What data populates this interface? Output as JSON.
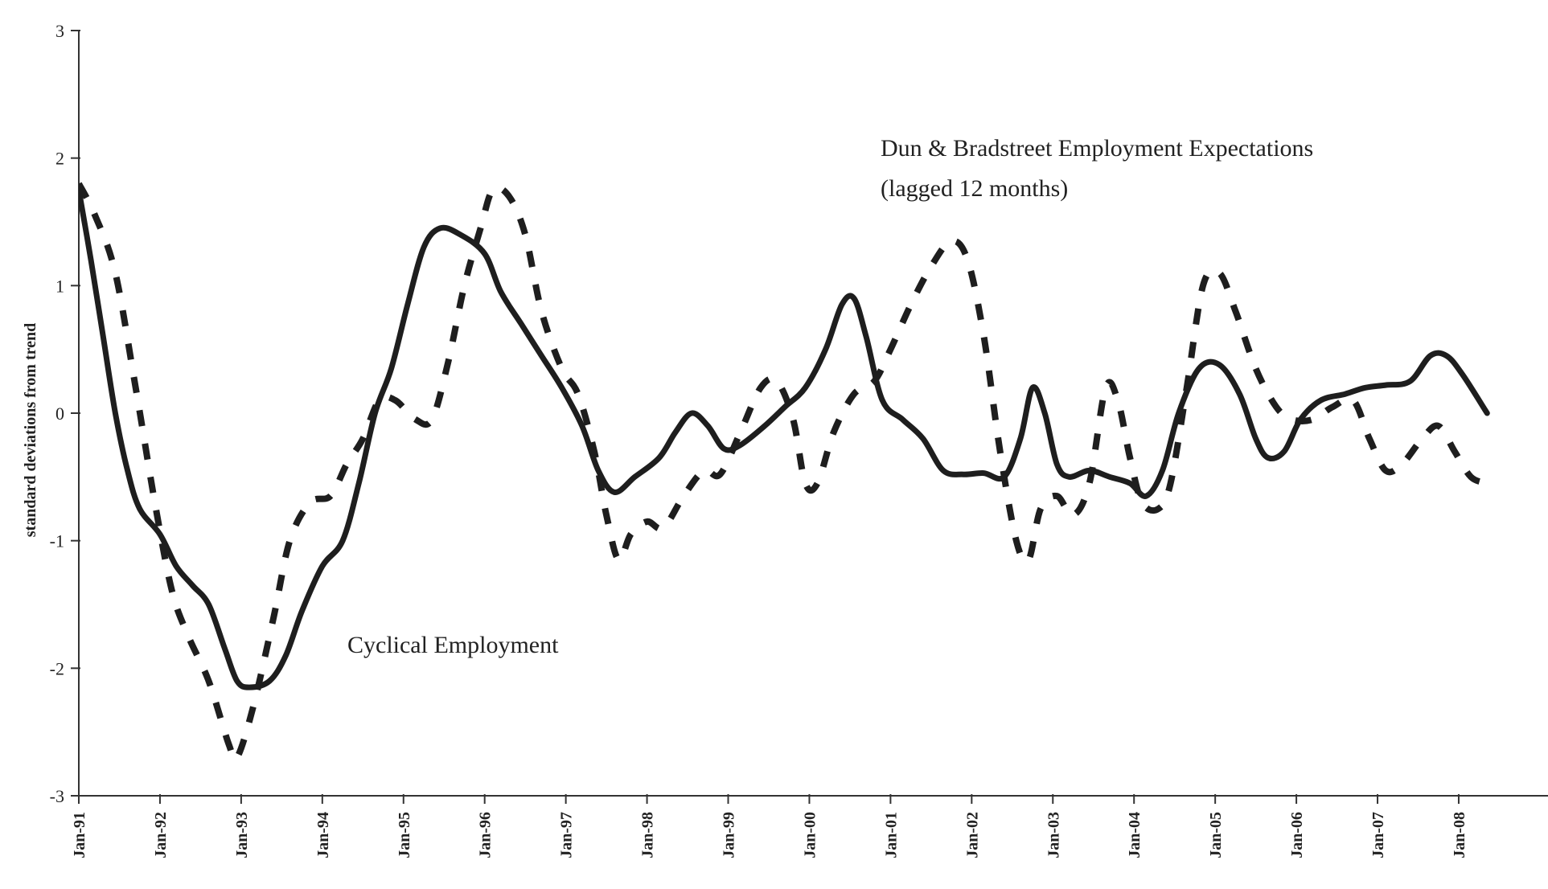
{
  "chart_data": {
    "type": "line",
    "title": "",
    "xlabel": "",
    "ylabel": "standard deviations from trend",
    "ylim": [
      -3,
      3
    ],
    "yticks": [
      3,
      2,
      1,
      0,
      -1,
      -2,
      -3
    ],
    "xlim": [
      1991.0,
      2009.1
    ],
    "xticks": [
      {
        "label": "Jan-91",
        "x": 1991
      },
      {
        "label": "Jan-92",
        "x": 1992
      },
      {
        "label": "Jan-93",
        "x": 1993
      },
      {
        "label": "Jan-94",
        "x": 1994
      },
      {
        "label": "Jan-95",
        "x": 1995
      },
      {
        "label": "Jan-96",
        "x": 1996
      },
      {
        "label": "Jan-97",
        "x": 1997
      },
      {
        "label": "Jan-98",
        "x": 1998
      },
      {
        "label": "Jan-99",
        "x": 1999
      },
      {
        "label": "Jan-00",
        "x": 2000
      },
      {
        "label": "Jan-01",
        "x": 2001
      },
      {
        "label": "Jan-02",
        "x": 2002
      },
      {
        "label": "Jan-03",
        "x": 2003
      },
      {
        "label": "Jan-04",
        "x": 2004
      },
      {
        "label": "Jan-05",
        "x": 2005
      },
      {
        "label": "Jan-06",
        "x": 2006
      },
      {
        "label": "Jan-07",
        "x": 2007
      },
      {
        "label": "Jan-08",
        "x": 2008
      }
    ],
    "grid": false,
    "legend": "none",
    "annotations": [
      {
        "text": "Cyclical Employment"
      },
      {
        "text": "Dun & Bradstreet Employment Expectations"
      },
      {
        "text": "(lagged 12 months)"
      }
    ],
    "series": [
      {
        "name": "Cyclical Employment",
        "style": "solid",
        "color": "#1e1e1e",
        "points": [
          [
            1991.0,
            1.75
          ],
          [
            1991.15,
            1.2
          ],
          [
            1991.3,
            0.6
          ],
          [
            1991.45,
            0.0
          ],
          [
            1991.6,
            -0.45
          ],
          [
            1991.75,
            -0.75
          ],
          [
            1992.0,
            -0.95
          ],
          [
            1992.2,
            -1.2
          ],
          [
            1992.4,
            -1.35
          ],
          [
            1992.6,
            -1.5
          ],
          [
            1992.8,
            -1.85
          ],
          [
            1992.95,
            -2.1
          ],
          [
            1993.1,
            -2.15
          ],
          [
            1993.35,
            -2.1
          ],
          [
            1993.55,
            -1.9
          ],
          [
            1993.75,
            -1.55
          ],
          [
            1994.0,
            -1.2
          ],
          [
            1994.25,
            -1.0
          ],
          [
            1994.45,
            -0.55
          ],
          [
            1994.65,
            0.0
          ],
          [
            1994.85,
            0.35
          ],
          [
            1995.05,
            0.85
          ],
          [
            1995.25,
            1.3
          ],
          [
            1995.45,
            1.45
          ],
          [
            1995.7,
            1.4
          ],
          [
            1996.0,
            1.25
          ],
          [
            1996.2,
            0.95
          ],
          [
            1996.45,
            0.7
          ],
          [
            1996.7,
            0.45
          ],
          [
            1996.95,
            0.2
          ],
          [
            1997.2,
            -0.1
          ],
          [
            1997.4,
            -0.45
          ],
          [
            1997.6,
            -0.62
          ],
          [
            1997.85,
            -0.5
          ],
          [
            1998.15,
            -0.35
          ],
          [
            1998.35,
            -0.15
          ],
          [
            1998.55,
            0.0
          ],
          [
            1998.75,
            -0.1
          ],
          [
            1998.95,
            -0.28
          ],
          [
            1999.15,
            -0.25
          ],
          [
            1999.45,
            -0.1
          ],
          [
            1999.7,
            0.05
          ],
          [
            1999.95,
            0.2
          ],
          [
            2000.2,
            0.5
          ],
          [
            2000.4,
            0.85
          ],
          [
            2000.55,
            0.9
          ],
          [
            2000.7,
            0.6
          ],
          [
            2000.9,
            0.1
          ],
          [
            2001.15,
            -0.05
          ],
          [
            2001.4,
            -0.2
          ],
          [
            2001.65,
            -0.45
          ],
          [
            2001.9,
            -0.48
          ],
          [
            2002.15,
            -0.47
          ],
          [
            2002.4,
            -0.5
          ],
          [
            2002.6,
            -0.2
          ],
          [
            2002.75,
            0.2
          ],
          [
            2002.9,
            0.0
          ],
          [
            2003.05,
            -0.4
          ],
          [
            2003.2,
            -0.5
          ],
          [
            2003.45,
            -0.45
          ],
          [
            2003.7,
            -0.5
          ],
          [
            2003.95,
            -0.55
          ],
          [
            2004.15,
            -0.65
          ],
          [
            2004.35,
            -0.45
          ],
          [
            2004.55,
            0.0
          ],
          [
            2004.8,
            0.35
          ],
          [
            2005.05,
            0.38
          ],
          [
            2005.3,
            0.15
          ],
          [
            2005.5,
            -0.2
          ],
          [
            2005.65,
            -0.35
          ],
          [
            2005.85,
            -0.3
          ],
          [
            2006.05,
            -0.05
          ],
          [
            2006.3,
            0.1
          ],
          [
            2006.6,
            0.15
          ],
          [
            2006.85,
            0.2
          ],
          [
            2007.1,
            0.22
          ],
          [
            2007.4,
            0.25
          ],
          [
            2007.65,
            0.45
          ],
          [
            2007.85,
            0.45
          ],
          [
            2008.05,
            0.3
          ],
          [
            2008.35,
            0.0
          ]
        ]
      },
      {
        "name": "Dun & Bradstreet Employment Expectations (lagged 12 months)",
        "style": "dashed",
        "color": "#1e1e1e",
        "points": [
          [
            1991.0,
            1.8
          ],
          [
            1991.2,
            1.55
          ],
          [
            1991.45,
            1.1
          ],
          [
            1991.7,
            0.2
          ],
          [
            1991.95,
            -0.75
          ],
          [
            1992.15,
            -1.4
          ],
          [
            1992.35,
            -1.75
          ],
          [
            1992.6,
            -2.1
          ],
          [
            1992.85,
            -2.6
          ],
          [
            1992.95,
            -2.7
          ],
          [
            1993.15,
            -2.3
          ],
          [
            1993.4,
            -1.6
          ],
          [
            1993.6,
            -1.0
          ],
          [
            1993.85,
            -0.7
          ],
          [
            1994.1,
            -0.65
          ],
          [
            1994.3,
            -0.4
          ],
          [
            1994.5,
            -0.2
          ],
          [
            1994.7,
            0.1
          ],
          [
            1994.9,
            0.1
          ],
          [
            1995.15,
            -0.05
          ],
          [
            1995.35,
            -0.05
          ],
          [
            1995.55,
            0.4
          ],
          [
            1995.75,
            1.0
          ],
          [
            1995.95,
            1.45
          ],
          [
            1996.1,
            1.75
          ],
          [
            1996.3,
            1.7
          ],
          [
            1996.5,
            1.4
          ],
          [
            1996.7,
            0.8
          ],
          [
            1996.95,
            0.35
          ],
          [
            1997.15,
            0.15
          ],
          [
            1997.35,
            -0.3
          ],
          [
            1997.5,
            -0.8
          ],
          [
            1997.65,
            -1.15
          ],
          [
            1997.8,
            -0.95
          ],
          [
            1998.0,
            -0.85
          ],
          [
            1998.2,
            -0.9
          ],
          [
            1998.45,
            -0.65
          ],
          [
            1998.7,
            -0.45
          ],
          [
            1998.9,
            -0.48
          ],
          [
            1999.15,
            -0.15
          ],
          [
            1999.4,
            0.2
          ],
          [
            1999.6,
            0.25
          ],
          [
            1999.8,
            -0.05
          ],
          [
            1999.95,
            -0.55
          ],
          [
            2000.1,
            -0.55
          ],
          [
            2000.3,
            -0.15
          ],
          [
            2000.55,
            0.15
          ],
          [
            2000.8,
            0.25
          ],
          [
            2001.0,
            0.5
          ],
          [
            2001.25,
            0.85
          ],
          [
            2001.5,
            1.15
          ],
          [
            2001.75,
            1.35
          ],
          [
            2001.95,
            1.2
          ],
          [
            2002.15,
            0.6
          ],
          [
            2002.35,
            -0.3
          ],
          [
            2002.55,
            -1.0
          ],
          [
            2002.7,
            -1.15
          ],
          [
            2002.85,
            -0.75
          ],
          [
            2003.05,
            -0.65
          ],
          [
            2003.25,
            -0.8
          ],
          [
            2003.45,
            -0.55
          ],
          [
            2003.65,
            0.2
          ],
          [
            2003.8,
            0.1
          ],
          [
            2003.95,
            -0.35
          ],
          [
            2004.1,
            -0.7
          ],
          [
            2004.3,
            -0.75
          ],
          [
            2004.45,
            -0.55
          ],
          [
            2004.65,
            0.2
          ],
          [
            2004.85,
            1.0
          ],
          [
            2005.05,
            1.1
          ],
          [
            2005.25,
            0.8
          ],
          [
            2005.5,
            0.35
          ],
          [
            2005.75,
            0.05
          ],
          [
            2005.95,
            -0.05
          ],
          [
            2006.2,
            -0.05
          ],
          [
            2006.45,
            0.05
          ],
          [
            2006.7,
            0.1
          ],
          [
            2006.9,
            -0.2
          ],
          [
            2007.1,
            -0.45
          ],
          [
            2007.3,
            -0.4
          ],
          [
            2007.55,
            -0.2
          ],
          [
            2007.75,
            -0.1
          ],
          [
            2007.95,
            -0.3
          ],
          [
            2008.15,
            -0.5
          ],
          [
            2008.35,
            -0.55
          ]
        ]
      }
    ]
  }
}
